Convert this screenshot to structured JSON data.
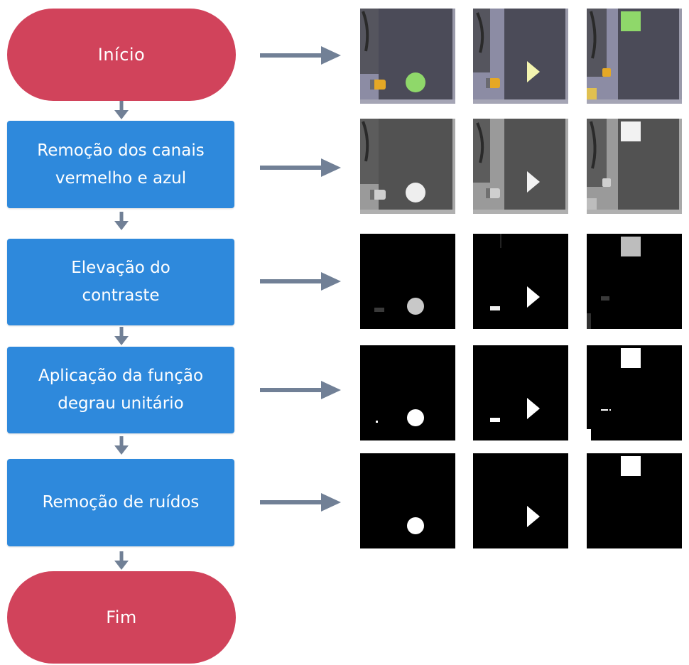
{
  "flow": {
    "start": "Início",
    "steps": [
      "Remoção dos canais\nvermelho e azul",
      "Elevação do\ncontraste",
      "Aplicação da função\ndegrau unitário",
      "Remoção de ruídos"
    ],
    "end": "Fim"
  },
  "image_grid": {
    "rows": [
      "original",
      "green-channel",
      "contrast",
      "threshold",
      "denoised"
    ],
    "columns": [
      "circle",
      "triangle",
      "square"
    ]
  },
  "colors": {
    "terminal": "#d1435b",
    "process": "#2e89dc",
    "arrow": "#718096"
  }
}
